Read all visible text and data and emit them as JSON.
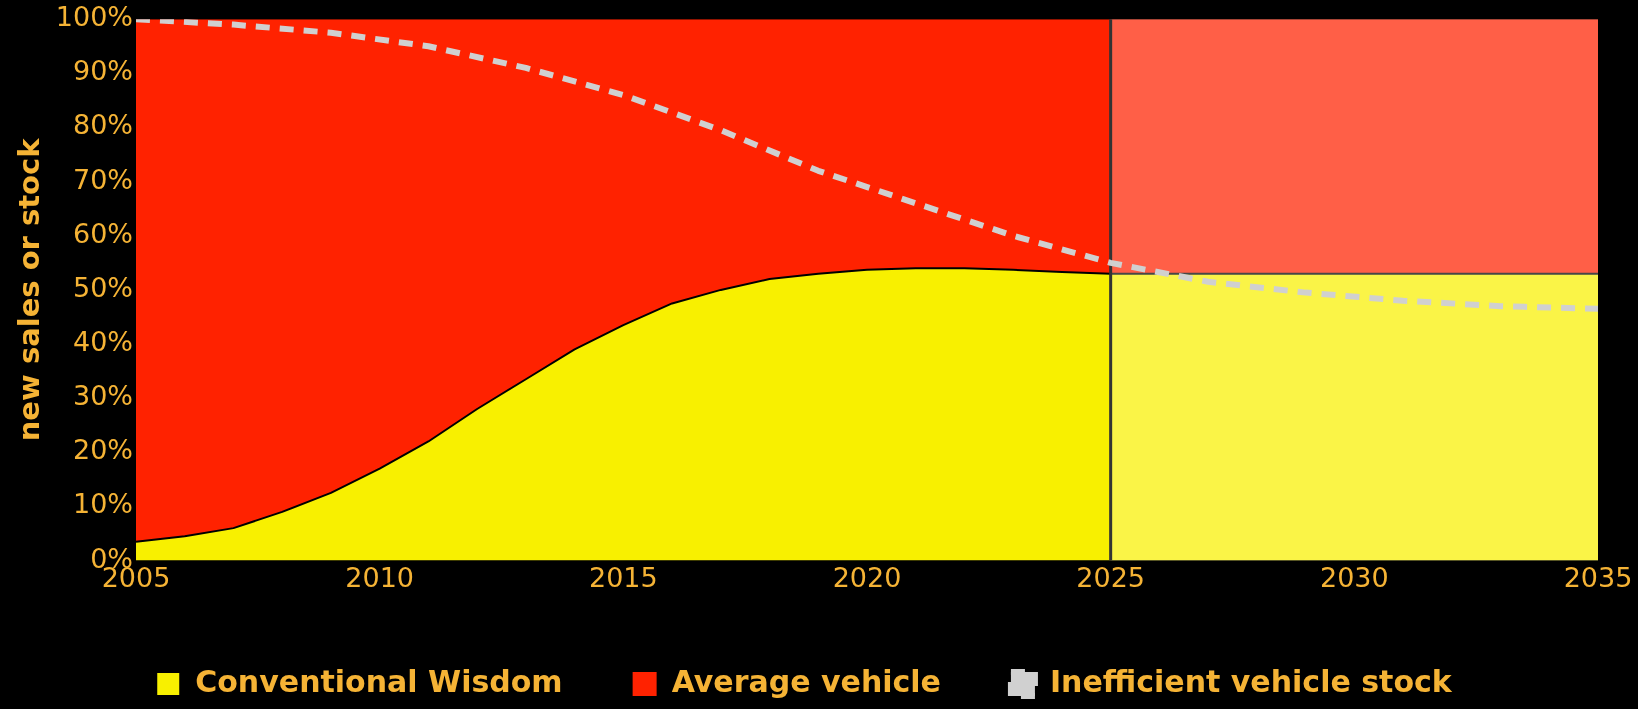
{
  "chart_data": {
    "type": "area",
    "ylabel": "new sales or stock",
    "x": [
      2005,
      2006,
      2007,
      2008,
      2009,
      2010,
      2011,
      2012,
      2013,
      2014,
      2015,
      2016,
      2017,
      2018,
      2019,
      2020,
      2021,
      2022,
      2023,
      2024,
      2025,
      2027,
      2029,
      2031,
      2033,
      2035
    ],
    "stacked": true,
    "series": [
      {
        "name": "Conventional Wisdom",
        "color": "#f8f000",
        "values": [
          3.5,
          4.5,
          6,
          9,
          12.5,
          17,
          22,
          28,
          33.5,
          39,
          43.5,
          47.5,
          50,
          52,
          53,
          53.7,
          54,
          54,
          53.7,
          53.3,
          53,
          53,
          53,
          53,
          53,
          53
        ]
      },
      {
        "name": "Average vehicle",
        "color": "#ff2200",
        "values": [
          96.5,
          95.5,
          94,
          91,
          87.5,
          83,
          78,
          72,
          66.5,
          61,
          56.5,
          52.5,
          50,
          48,
          47,
          46.3,
          46,
          46,
          46.3,
          46.7,
          47,
          47,
          47,
          47,
          47,
          47
        ]
      },
      {
        "name": "Inefficient vehicle stock",
        "type": "line",
        "color": "#d0d0d0",
        "line_style": "dashed",
        "x": [
          2005,
          2007,
          2009,
          2011,
          2013,
          2015,
          2017,
          2019,
          2021,
          2023,
          2025,
          2027,
          2029,
          2031,
          2033,
          2035
        ],
        "values": [
          100,
          99,
          97.5,
          95,
          91,
          86,
          79.5,
          72,
          66,
          60,
          55,
          51.5,
          49.5,
          48,
          47,
          46.5
        ]
      }
    ],
    "xlim": [
      2005,
      2035
    ],
    "xticks": [
      2005,
      2010,
      2015,
      2020,
      2025,
      2030,
      2035
    ],
    "ylim": [
      0,
      100
    ],
    "yticks": [
      {
        "value": 0,
        "label": "0%"
      },
      {
        "value": 10,
        "label": "10%"
      },
      {
        "value": 20,
        "label": "20%"
      },
      {
        "value": 30,
        "label": "30%"
      },
      {
        "value": 40,
        "label": "40%"
      },
      {
        "value": 50,
        "label": "50%"
      },
      {
        "value": 60,
        "label": "60%"
      },
      {
        "value": 70,
        "label": "70%"
      },
      {
        "value": 80,
        "label": "80%"
      },
      {
        "value": 90,
        "label": "90%"
      },
      {
        "value": 100,
        "label": "100%"
      }
    ],
    "ref_lines": [
      {
        "axis": "x",
        "value": 2025,
        "color": "#333333"
      }
    ],
    "bands": [
      {
        "axis": "x",
        "from": 2025,
        "to": 2035,
        "color": "#ffffff"
      }
    ],
    "legend": "bottom",
    "grid": false
  }
}
